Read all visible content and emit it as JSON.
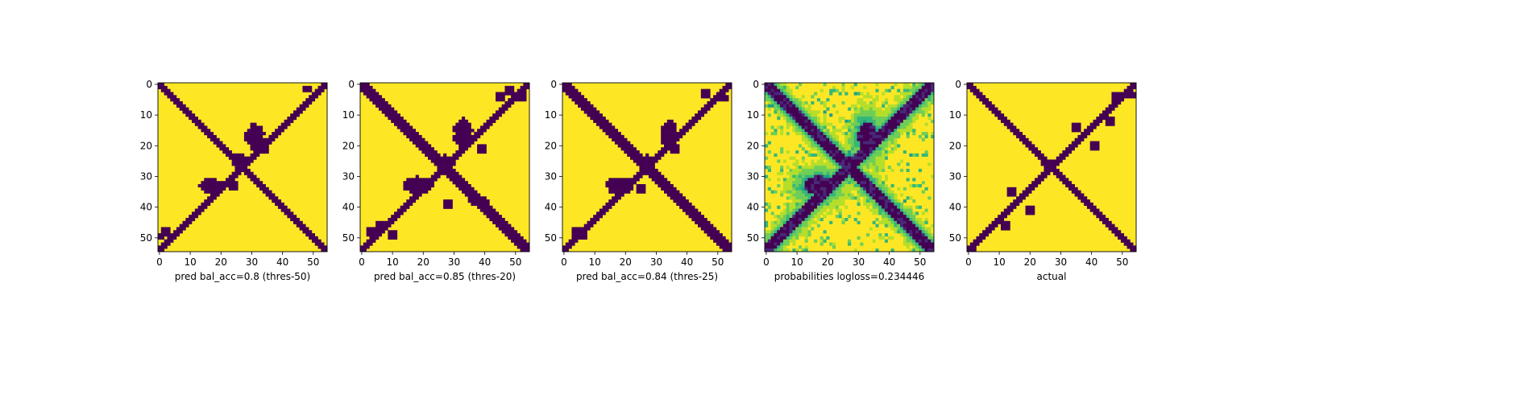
{
  "chart_data": [
    {
      "type": "heatmap",
      "variant": "binary",
      "xlabel": "pred bal_acc=0.8 (thres-50)",
      "xlim": [
        0,
        55
      ],
      "ylim": [
        55,
        0
      ],
      "xticks": [
        0,
        10,
        20,
        30,
        40,
        50
      ],
      "yticks": [
        0,
        10,
        20,
        30,
        40,
        50
      ],
      "diag_half_width": 1.8,
      "anti_half_width": 1.3,
      "blobs": [
        {
          "cx": 31,
          "cy": 17,
          "rx": 3.2,
          "ry": 4.6
        },
        {
          "cx": 17,
          "cy": 33,
          "rx": 4.2,
          "ry": 2.6
        },
        {
          "cx": 26,
          "cy": 25,
          "rx": 2.5,
          "ry": 2.5
        }
      ],
      "specks": [
        [
          48,
          1.5
        ],
        [
          2,
          48
        ],
        [
          0.8,
          49.5
        ],
        [
          24,
          33
        ],
        [
          34,
          21
        ]
      ]
    },
    {
      "type": "heatmap",
      "variant": "binary",
      "xlabel": "pred bal_acc=0.85 (thres-20)",
      "xlim": [
        0,
        55
      ],
      "ylim": [
        55,
        0
      ],
      "xticks": [
        0,
        10,
        20,
        30,
        40,
        50
      ],
      "yticks": [
        0,
        10,
        20,
        30,
        40,
        50
      ],
      "diag_half_width": 2.2,
      "anti_half_width": 1.5,
      "blobs": [
        {
          "cx": 33,
          "cy": 16,
          "rx": 3.3,
          "ry": 5
        },
        {
          "cx": 18,
          "cy": 33,
          "rx": 5.2,
          "ry": 3
        },
        {
          "cx": 27,
          "cy": 26,
          "rx": 3.1,
          "ry": 3.1
        },
        {
          "cx": 38,
          "cy": 38,
          "rx": 3,
          "ry": 2
        }
      ],
      "specks": [
        [
          45,
          4
        ],
        [
          48,
          2
        ],
        [
          52,
          4
        ],
        [
          3,
          48
        ],
        [
          6,
          46
        ],
        [
          10,
          49
        ],
        [
          28,
          39
        ],
        [
          39,
          21
        ]
      ]
    },
    {
      "type": "heatmap",
      "variant": "binary",
      "xlabel": "pred bal_acc=0.84 (thres-25)",
      "xlim": [
        0,
        55
      ],
      "ylim": [
        55,
        0
      ],
      "xticks": [
        0,
        10,
        20,
        30,
        40,
        50
      ],
      "yticks": [
        0,
        10,
        20,
        30,
        40,
        50
      ],
      "diag_half_width": 2,
      "anti_half_width": 1.2,
      "blobs": [
        {
          "cx": 34,
          "cy": 16,
          "rx": 3,
          "ry": 4.8
        },
        {
          "cx": 18,
          "cy": 33,
          "rx": 4.8,
          "ry": 2.8
        },
        {
          "cx": 27,
          "cy": 26,
          "rx": 3,
          "ry": 3
        }
      ],
      "specks": [
        [
          46,
          3
        ],
        [
          52,
          4.5
        ],
        [
          4,
          48
        ],
        [
          6,
          49
        ],
        [
          36,
          21
        ],
        [
          25,
          34
        ]
      ]
    },
    {
      "type": "heatmap",
      "variant": "probability",
      "xlabel": "probabilities logloss=0.234446",
      "xlim": [
        0,
        55
      ],
      "ylim": [
        55,
        0
      ],
      "xticks": [
        0,
        10,
        20,
        30,
        40,
        50
      ],
      "yticks": [
        0,
        10,
        20,
        30,
        40,
        50
      ],
      "diag_half_width": 2.2,
      "anti_half_width": 2,
      "blobs": [
        {
          "cx": 33,
          "cy": 17,
          "rx": 3.2,
          "ry": 4.6
        },
        {
          "cx": 17,
          "cy": 33,
          "rx": 4.6,
          "ry": 3.2
        },
        {
          "cx": 27,
          "cy": 26,
          "rx": 2.8,
          "ry": 2.8
        }
      ],
      "specks": []
    },
    {
      "type": "heatmap",
      "variant": "binary",
      "xlabel": "actual",
      "xlim": [
        0,
        55
      ],
      "ylim": [
        55,
        0
      ],
      "xticks": [
        0,
        10,
        20,
        30,
        40,
        50
      ],
      "yticks": [
        0,
        10,
        20,
        30,
        40,
        50
      ],
      "diag_half_width": 1.5,
      "anti_half_width": 1.3,
      "blobs": [
        {
          "cx": 26,
          "cy": 26,
          "rx": 2,
          "ry": 2
        }
      ],
      "specks": [
        [
          53,
          3.5
        ],
        [
          1.5,
          53
        ],
        [
          48,
          4
        ],
        [
          14,
          35
        ],
        [
          35,
          14
        ],
        [
          20,
          41
        ],
        [
          41,
          20
        ],
        [
          12,
          46
        ],
        [
          46,
          12
        ]
      ]
    }
  ],
  "colors": {
    "low": "#440154",
    "high": "#fde725",
    "palette": [
      "#440154",
      "#482878",
      "#3e4989",
      "#31688e",
      "#26828e",
      "#1f9e89",
      "#35b779",
      "#6ece58",
      "#b5de2b",
      "#fde725"
    ]
  }
}
